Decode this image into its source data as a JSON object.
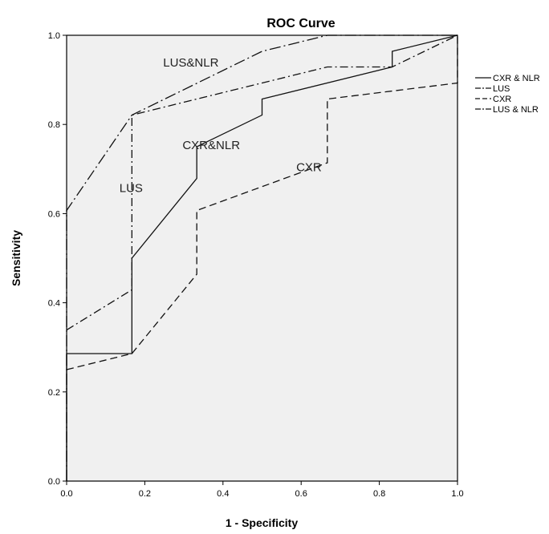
{
  "chart_data": {
    "type": "line",
    "title": "ROC Curve",
    "xlabel": "1 - Specificity",
    "ylabel": "Sensitivity",
    "xlim": [
      0,
      1
    ],
    "ylim": [
      0,
      1
    ],
    "xticks": [
      "0.0",
      "0.2",
      "0.4",
      "0.6",
      "0.8",
      "1.0"
    ],
    "yticks": [
      "0.0",
      "0.2",
      "0.4",
      "0.6",
      "0.8",
      "1.0"
    ],
    "grid": false,
    "legend_position": "right",
    "background_color": "#f0f0f0",
    "series": [
      {
        "name": "CXR & NLR",
        "dash": "solid",
        "points": [
          [
            0,
            0
          ],
          [
            0,
            0.286
          ],
          [
            0.167,
            0.286
          ],
          [
            0.167,
            0.5
          ],
          [
            0.333,
            0.679
          ],
          [
            0.333,
            0.75
          ],
          [
            0.5,
            0.821
          ],
          [
            0.5,
            0.857
          ],
          [
            0.833,
            0.929
          ],
          [
            0.833,
            0.964
          ],
          [
            1,
            1
          ]
        ]
      },
      {
        "name": "LUS",
        "dash": "dashdot",
        "points": [
          [
            0,
            0.339
          ],
          [
            0.167,
            0.429
          ],
          [
            0.167,
            0.821
          ],
          [
            0.333,
            0.857
          ],
          [
            0.667,
            0.929
          ],
          [
            0.833,
            0.929
          ],
          [
            1,
            1
          ]
        ]
      },
      {
        "name": "CXR",
        "dash": "dashed",
        "points": [
          [
            0,
            0.25
          ],
          [
            0.167,
            0.286
          ],
          [
            0.333,
            0.464
          ],
          [
            0.333,
            0.607
          ],
          [
            0.667,
            0.714
          ],
          [
            0.667,
            0.857
          ],
          [
            1,
            0.893
          ],
          [
            1,
            1
          ]
        ]
      },
      {
        "name": "LUS & NLR",
        "dash": "dashdotlong",
        "points": [
          [
            0,
            0
          ],
          [
            0,
            0.607
          ],
          [
            0.167,
            0.821
          ],
          [
            0.5,
            0.964
          ],
          [
            0.667,
            1
          ],
          [
            1,
            1
          ]
        ]
      }
    ],
    "annotations": [
      {
        "text": "LUS&NLR",
        "x": 0.318,
        "y": 0.93
      },
      {
        "text": "CXR&NLR",
        "x": 0.37,
        "y": 0.745
      },
      {
        "text": "LUS",
        "x": 0.165,
        "y": 0.648
      },
      {
        "text": "CXR",
        "x": 0.62,
        "y": 0.695
      }
    ]
  }
}
